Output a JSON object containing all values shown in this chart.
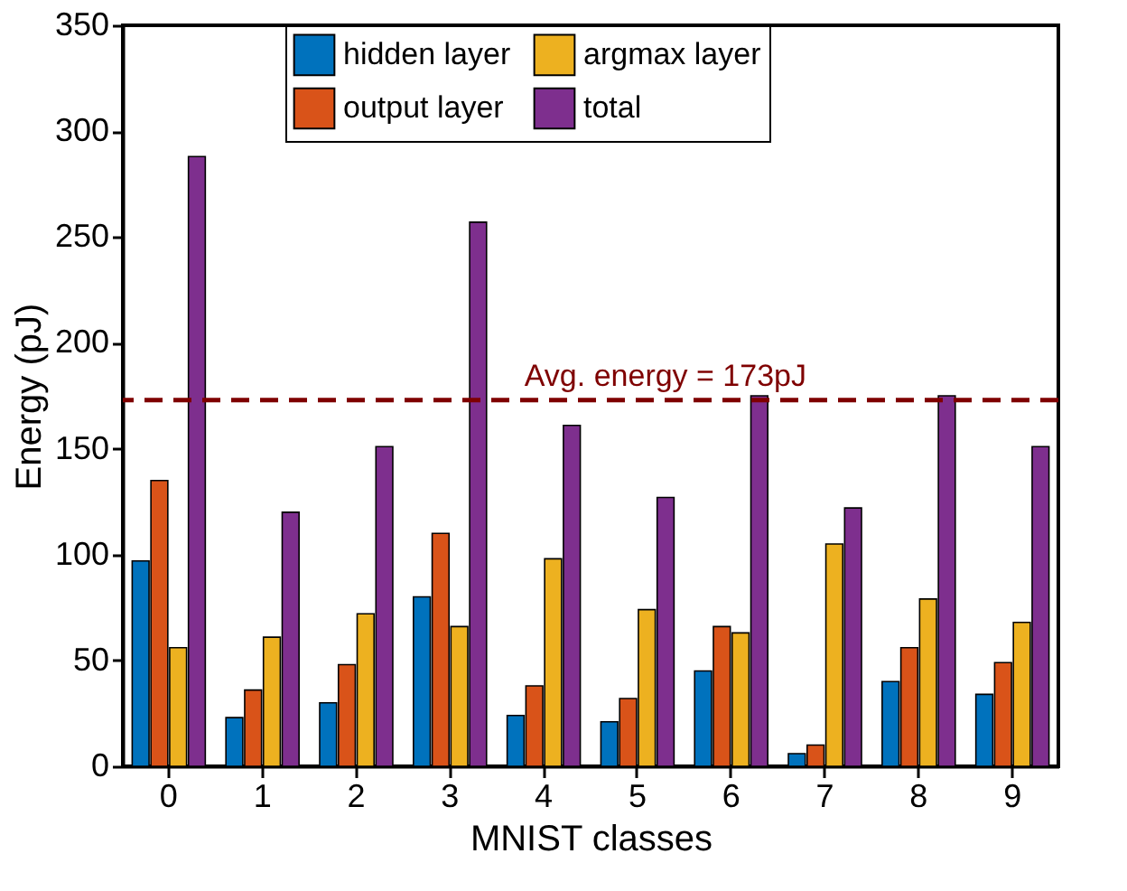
{
  "chart_data": {
    "type": "bar",
    "xlabel": "MNIST classes",
    "ylabel": "Energy (pJ)",
    "categories": [
      "0",
      "1",
      "2",
      "3",
      "4",
      "5",
      "6",
      "7",
      "8",
      "9"
    ],
    "series": [
      {
        "name": "hidden layer",
        "color": "#0072bd",
        "values": [
          97,
          23,
          30,
          80,
          24,
          21,
          45,
          6,
          40,
          34
        ]
      },
      {
        "name": "output layer",
        "color": "#d95319",
        "values": [
          135,
          36,
          48,
          110,
          38,
          32,
          66,
          10,
          56,
          49
        ]
      },
      {
        "name": "argmax layer",
        "color": "#edb120",
        "values": [
          56,
          61,
          72,
          66,
          98,
          74,
          63,
          105,
          79,
          68
        ]
      },
      {
        "name": "total",
        "color": "#7e2f8e",
        "values": [
          288,
          120,
          151,
          257,
          161,
          127,
          175,
          122,
          175,
          151
        ]
      }
    ],
    "ylim": [
      0,
      350
    ],
    "yticks": [
      0,
      50,
      100,
      150,
      200,
      250,
      300,
      350
    ],
    "ref_lines": [
      {
        "axis": "y",
        "value": 173,
        "label": "Avg. energy = 173pJ",
        "color": "#7f0000",
        "line_style": "dashed"
      }
    ],
    "legend": "top",
    "grid": false
  }
}
